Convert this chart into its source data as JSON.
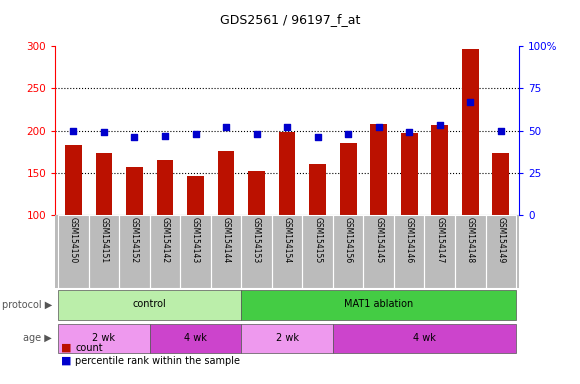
{
  "title": "GDS2561 / 96197_f_at",
  "samples": [
    "GSM154150",
    "GSM154151",
    "GSM154152",
    "GSM154142",
    "GSM154143",
    "GSM154144",
    "GSM154153",
    "GSM154154",
    "GSM154155",
    "GSM154156",
    "GSM154145",
    "GSM154146",
    "GSM154147",
    "GSM154148",
    "GSM154149"
  ],
  "counts": [
    183,
    173,
    157,
    165,
    146,
    176,
    152,
    198,
    160,
    185,
    208,
    197,
    207,
    297,
    173
  ],
  "percentiles": [
    50,
    49,
    46,
    47,
    48,
    52,
    48,
    52,
    46,
    48,
    52,
    49,
    53,
    67,
    50
  ],
  "ylim_left": [
    100,
    300
  ],
  "ylim_right": [
    0,
    100
  ],
  "yticks_left": [
    100,
    150,
    200,
    250,
    300
  ],
  "yticks_right": [
    0,
    25,
    50,
    75,
    100
  ],
  "ytick_labels_right": [
    "0",
    "25",
    "50",
    "75",
    "100%"
  ],
  "bar_color": "#bb1100",
  "dot_color": "#0000cc",
  "protocol_groups": [
    {
      "label": "control",
      "start": 0,
      "end": 6,
      "color": "#bbeeaa"
    },
    {
      "label": "MAT1 ablation",
      "start": 6,
      "end": 15,
      "color": "#44cc44"
    }
  ],
  "age_groups": [
    {
      "label": "2 wk",
      "start": 0,
      "end": 3,
      "color": "#ee99ee"
    },
    {
      "label": "4 wk",
      "start": 3,
      "end": 6,
      "color": "#cc44cc"
    },
    {
      "label": "2 wk",
      "start": 6,
      "end": 9,
      "color": "#ee99ee"
    },
    {
      "label": "4 wk",
      "start": 9,
      "end": 15,
      "color": "#cc44cc"
    }
  ],
  "protocol_label": "protocol",
  "age_label": "age",
  "background_color": "#ffffff",
  "xticklabel_bg": "#bbbbbb",
  "bar_width": 0.55
}
